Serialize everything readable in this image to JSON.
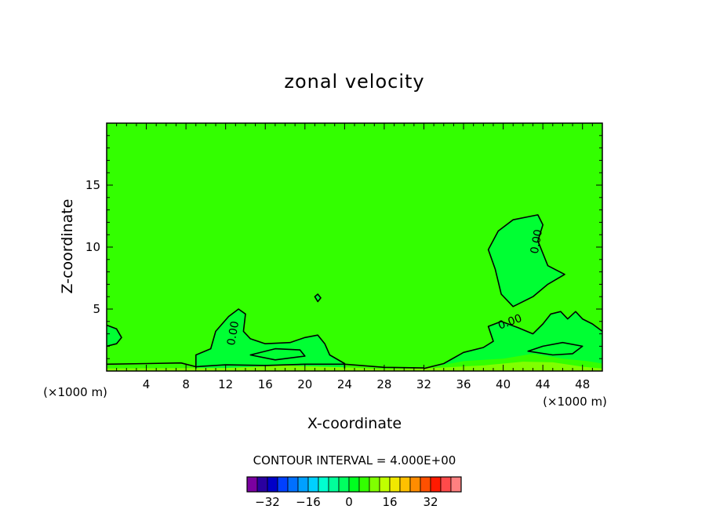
{
  "chart_data": {
    "type": "contour",
    "title": "zonal velocity",
    "xlabel": "X-coordinate",
    "ylabel": "Z-coordinate",
    "x_unit_label": "(×1000 m)",
    "y_unit_label": "(×1000 m)",
    "xlim": [
      0,
      50
    ],
    "ylim": [
      0,
      20
    ],
    "x_ticks": [
      4,
      8,
      12,
      16,
      20,
      24,
      28,
      32,
      36,
      40,
      44,
      48
    ],
    "y_ticks": [
      5,
      10,
      15
    ],
    "background_level_color": "#33ff00",
    "contour_label": "0.00",
    "contour_interval_text": "CONTOUR INTERVAL = 4.000E+00",
    "colorbar": {
      "colors": [
        "#7a00a0",
        "#2a00a0",
        "#0000c8",
        "#0040ff",
        "#0070ff",
        "#00a0ff",
        "#00d0ff",
        "#00ffd0",
        "#00ff9a",
        "#00ff60",
        "#00ff20",
        "#33ff00",
        "#80ff00",
        "#c0ff00",
        "#f0e800",
        "#ffc000",
        "#ff8c00",
        "#ff5000",
        "#ff1a00",
        "#ff4a4a",
        "#ff8080"
      ],
      "tick_labels": [
        "−32",
        "−16",
        "0",
        "16",
        "32"
      ],
      "tick_values": [
        -32,
        -16,
        0,
        16,
        32
      ]
    },
    "regions": [
      {
        "name": "upper-right-cell",
        "level": 0,
        "color": "#00ff33",
        "points": [
          [
            38.5,
            9.8
          ],
          [
            39.5,
            11.3
          ],
          [
            41,
            12.2
          ],
          [
            43.5,
            12.6
          ],
          [
            44,
            11.8
          ],
          [
            43.5,
            10.5
          ],
          [
            44.5,
            8.5
          ],
          [
            46.2,
            7.8
          ],
          [
            44.5,
            7
          ],
          [
            43,
            6
          ],
          [
            41,
            5.2
          ],
          [
            39.8,
            6.2
          ],
          [
            39.2,
            8.2
          ]
        ]
      },
      {
        "name": "small-loop",
        "level": 0,
        "color": "#00ff33",
        "points": [
          [
            21,
            6.0
          ],
          [
            21.3,
            6.2
          ],
          [
            21.6,
            5.9
          ],
          [
            21.3,
            5.6
          ]
        ]
      },
      {
        "name": "left-low-cell",
        "level": 0,
        "color": "#00ff33",
        "points": [
          [
            9,
            0.2
          ],
          [
            9,
            1.3
          ],
          [
            10.5,
            1.8
          ],
          [
            11,
            3.2
          ],
          [
            12.3,
            4.4
          ],
          [
            13.3,
            5.0
          ],
          [
            14,
            4.6
          ],
          [
            13.8,
            3.2
          ],
          [
            14.5,
            2.6
          ],
          [
            16,
            2.2
          ],
          [
            18.5,
            2.3
          ],
          [
            20,
            2.7
          ],
          [
            21.3,
            2.9
          ],
          [
            22,
            2.2
          ],
          [
            22.5,
            1.3
          ],
          [
            24,
            0.6
          ],
          [
            24,
            0.2
          ]
        ]
      },
      {
        "name": "right-low-cell",
        "level": 0,
        "color": "#00ff33",
        "points": [
          [
            32,
            0.2
          ],
          [
            34,
            0.6
          ],
          [
            36,
            1.5
          ],
          [
            38,
            1.9
          ],
          [
            39,
            2.4
          ],
          [
            38.5,
            3.6
          ],
          [
            39.8,
            4.0
          ],
          [
            41.5,
            3.5
          ],
          [
            43,
            3.0
          ],
          [
            44,
            3.8
          ],
          [
            44.8,
            4.6
          ],
          [
            45.8,
            4.8
          ],
          [
            46.5,
            4.2
          ],
          [
            47.3,
            4.8
          ],
          [
            48,
            4.2
          ],
          [
            49,
            3.8
          ],
          [
            50,
            3.2
          ],
          [
            50,
            0.6
          ],
          [
            48.5,
            0.8
          ],
          [
            46,
            1.0
          ],
          [
            43,
            1.4
          ],
          [
            40,
            1.0
          ],
          [
            36,
            0.8
          ]
        ]
      },
      {
        "name": "left-edge-cell",
        "level": 0,
        "color": "#00ff33",
        "points": [
          [
            0,
            3.7
          ],
          [
            1,
            3.4
          ],
          [
            1.5,
            2.7
          ],
          [
            1,
            2.2
          ],
          [
            0,
            2.0
          ]
        ]
      },
      {
        "name": "bottom-band",
        "level": 4,
        "color": "#80ff00",
        "points": [
          [
            0,
            0.2
          ],
          [
            12,
            0.25
          ],
          [
            18,
            0.45
          ],
          [
            24,
            0.3
          ],
          [
            28,
            0.15
          ],
          [
            32,
            0.2
          ],
          [
            38,
            0.45
          ],
          [
            42,
            0.75
          ],
          [
            45,
            0.7
          ],
          [
            48,
            0.35
          ],
          [
            50,
            0.2
          ],
          [
            50,
            0
          ],
          [
            0,
            0
          ]
        ]
      }
    ],
    "contour_lines": [
      {
        "name": "upper-right-contour",
        "closed": true,
        "points": [
          [
            38.5,
            9.8
          ],
          [
            39.5,
            11.3
          ],
          [
            41,
            12.2
          ],
          [
            43.5,
            12.6
          ],
          [
            44,
            11.8
          ],
          [
            43.5,
            10.5
          ],
          [
            44.5,
            8.5
          ],
          [
            46.2,
            7.8
          ],
          [
            44.5,
            7
          ],
          [
            43,
            6
          ],
          [
            41,
            5.2
          ],
          [
            39.8,
            6.2
          ],
          [
            39.2,
            8.2
          ]
        ]
      },
      {
        "name": "left-low-contour",
        "closed": false,
        "points": [
          [
            9,
            0.2
          ],
          [
            9,
            1.3
          ],
          [
            10.5,
            1.8
          ],
          [
            11,
            3.2
          ],
          [
            12.3,
            4.4
          ],
          [
            13.3,
            5.0
          ],
          [
            14,
            4.6
          ],
          [
            13.8,
            3.2
          ],
          [
            14.5,
            2.6
          ],
          [
            16,
            2.2
          ],
          [
            18.5,
            2.3
          ],
          [
            20,
            2.7
          ],
          [
            21.3,
            2.9
          ],
          [
            22,
            2.2
          ],
          [
            22.5,
            1.3
          ],
          [
            24,
            0.6
          ],
          [
            24,
            0.2
          ]
        ]
      },
      {
        "name": "right-low-contour",
        "closed": false,
        "points": [
          [
            32,
            0.2
          ],
          [
            34,
            0.6
          ],
          [
            36,
            1.5
          ],
          [
            38,
            1.9
          ],
          [
            39,
            2.4
          ],
          [
            38.5,
            3.6
          ],
          [
            39.8,
            4.0
          ],
          [
            41.5,
            3.5
          ],
          [
            43,
            3.0
          ],
          [
            44,
            3.8
          ],
          [
            44.8,
            4.6
          ],
          [
            45.8,
            4.8
          ],
          [
            46.5,
            4.2
          ],
          [
            47.3,
            4.8
          ],
          [
            48,
            4.2
          ],
          [
            49,
            3.8
          ],
          [
            50,
            3.2
          ]
        ]
      },
      {
        "name": "left-edge-contour",
        "closed": false,
        "points": [
          [
            0,
            3.7
          ],
          [
            1,
            3.4
          ],
          [
            1.5,
            2.7
          ],
          [
            1,
            2.2
          ],
          [
            0,
            2.0
          ]
        ]
      },
      {
        "name": "inner-contour-a",
        "closed": true,
        "points": [
          [
            14.5,
            1.3
          ],
          [
            17,
            1.8
          ],
          [
            19.5,
            1.7
          ],
          [
            20,
            1.2
          ],
          [
            17,
            0.9
          ]
        ]
      },
      {
        "name": "inner-contour-b",
        "closed": true,
        "points": [
          [
            42.5,
            1.6
          ],
          [
            44,
            2.0
          ],
          [
            46,
            2.3
          ],
          [
            48,
            2.0
          ],
          [
            47,
            1.4
          ],
          [
            45,
            1.3
          ]
        ]
      },
      {
        "name": "baseline-contour",
        "closed": false,
        "points": [
          [
            0,
            0.55
          ],
          [
            4,
            0.6
          ],
          [
            7.5,
            0.65
          ],
          [
            9,
            0.35
          ],
          [
            12,
            0.5
          ],
          [
            16,
            0.45
          ],
          [
            20,
            0.55
          ],
          [
            24,
            0.55
          ],
          [
            28,
            0.3
          ],
          [
            32,
            0.25
          ]
        ]
      },
      {
        "name": "small-loop-contour",
        "closed": true,
        "points": [
          [
            21,
            6.0
          ],
          [
            21.3,
            6.2
          ],
          [
            21.6,
            5.9
          ],
          [
            21.3,
            5.6
          ]
        ]
      }
    ],
    "contour_labels": [
      {
        "text": "0.00",
        "x": 43.7,
        "y": 10.4,
        "rotate": -80
      },
      {
        "text": "0.00",
        "x": 13.1,
        "y": 3.0,
        "rotate": -80
      },
      {
        "text": "0.00",
        "x": 40.8,
        "y": 3.7,
        "rotate": -20
      }
    ]
  }
}
